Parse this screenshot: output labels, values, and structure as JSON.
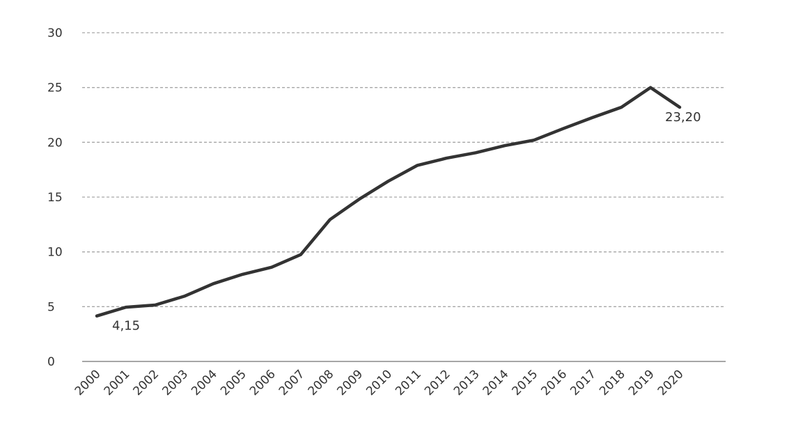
{
  "chart_data": {
    "type": "line",
    "title": "",
    "xlabel": "",
    "ylabel": "",
    "categories": [
      "2000",
      "2001",
      "2002",
      "2003",
      "2004",
      "2005",
      "2006",
      "2007",
      "2008",
      "2009",
      "2010",
      "2011",
      "2012",
      "2013",
      "2014",
      "2015",
      "2016",
      "2017",
      "2018",
      "2019",
      "2020"
    ],
    "series": [
      {
        "values": [
          4.15,
          4.95,
          5.15,
          5.95,
          7.1,
          7.95,
          8.6,
          9.75,
          12.95,
          14.8,
          16.45,
          17.9,
          18.55,
          19.05,
          19.7,
          20.2,
          21.25,
          22.25,
          23.2,
          25.0,
          23.2
        ]
      }
    ],
    "data_labels": [
      {
        "category": "2000",
        "text": "4,15"
      },
      {
        "category": "2020",
        "text": "23,20"
      }
    ],
    "ylim": [
      0,
      30
    ],
    "yticks": [
      0,
      5,
      10,
      15,
      20,
      25,
      30
    ],
    "grid": true,
    "legend": "none",
    "colors": {
      "line": "#333333",
      "grid": "#a6a6a6",
      "axis": "#a6a6a6",
      "text": "#333333"
    }
  }
}
